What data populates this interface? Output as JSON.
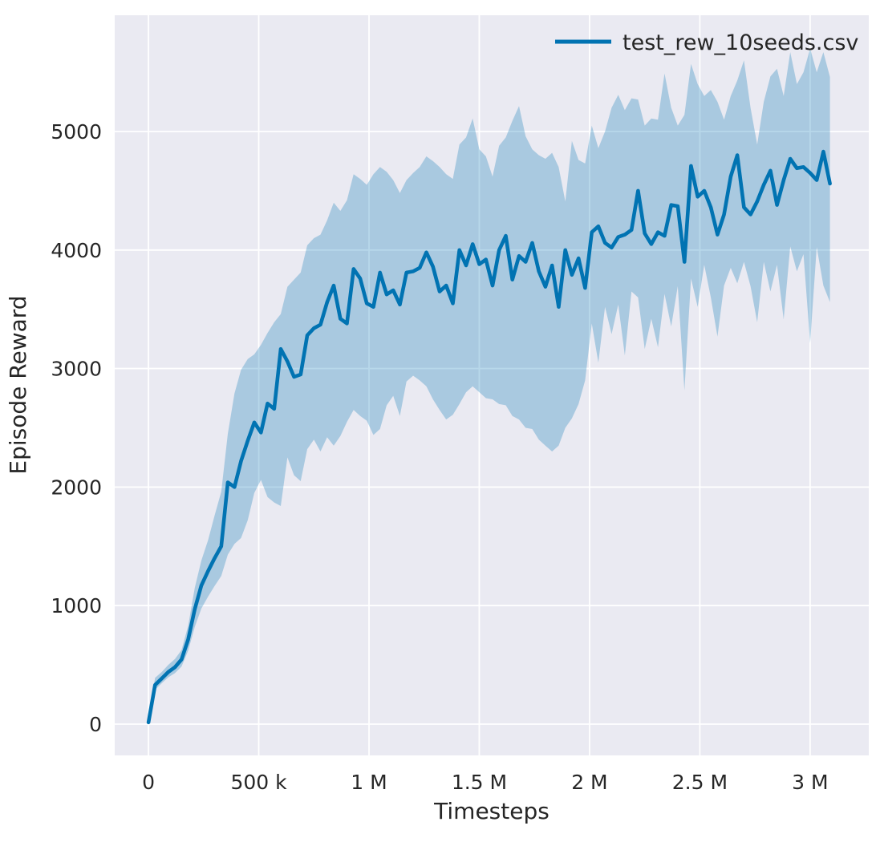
{
  "figure": {
    "background": "#ffffff",
    "axes_background": "#eaeaf2",
    "grid_color": "#ffffff",
    "text_color": "#262626"
  },
  "chart_data": {
    "type": "line",
    "title": "",
    "xlabel": "Timesteps",
    "ylabel": "Episode Reward",
    "grid": true,
    "legend_position": "upper right",
    "legend": [
      {
        "label": "test_rew_10seeds.csv",
        "color": "#0173b2"
      }
    ],
    "xlim": [
      -153000,
      3266000
    ],
    "ylim": [
      -264,
      5981
    ],
    "x_ticks": [
      {
        "value": 0,
        "label": "0"
      },
      {
        "value": 500000,
        "label": "500 k"
      },
      {
        "value": 1000000,
        "label": "1 M"
      },
      {
        "value": 1500000,
        "label": "1.5 M"
      },
      {
        "value": 2000000,
        "label": "2 M"
      },
      {
        "value": 2500000,
        "label": "2.5 M"
      },
      {
        "value": 3000000,
        "label": "3 M"
      }
    ],
    "y_ticks": [
      {
        "value": 0,
        "label": "0"
      },
      {
        "value": 1000,
        "label": "1000"
      },
      {
        "value": 2000,
        "label": "2000"
      },
      {
        "value": 3000,
        "label": "3000"
      },
      {
        "value": 4000,
        "label": "4000"
      },
      {
        "value": 5000,
        "label": "5000"
      }
    ],
    "series": [
      {
        "name": "test_rew_10seeds.csv",
        "color": "#0173b2",
        "band_alpha": 0.28,
        "x": [
          0,
          30000,
          60000,
          90000,
          120000,
          150000,
          180000,
          210000,
          240000,
          270000,
          300000,
          330000,
          360000,
          390000,
          420000,
          450000,
          480000,
          510000,
          540000,
          570000,
          600000,
          630000,
          660000,
          690000,
          720000,
          750000,
          780000,
          810000,
          840000,
          870000,
          900000,
          930000,
          960000,
          990000,
          1020000,
          1050000,
          1080000,
          1110000,
          1140000,
          1170000,
          1200000,
          1230000,
          1260000,
          1290000,
          1320000,
          1350000,
          1380000,
          1410000,
          1440000,
          1470000,
          1500000,
          1530000,
          1560000,
          1590000,
          1620000,
          1650000,
          1680000,
          1710000,
          1740000,
          1770000,
          1800000,
          1830000,
          1860000,
          1890000,
          1920000,
          1950000,
          1980000,
          2010000,
          2040000,
          2070000,
          2100000,
          2130000,
          2160000,
          2190000,
          2220000,
          2250000,
          2280000,
          2310000,
          2340000,
          2370000,
          2400000,
          2430000,
          2460000,
          2490000,
          2520000,
          2550000,
          2580000,
          2610000,
          2640000,
          2670000,
          2700000,
          2730000,
          2760000,
          2790000,
          2820000,
          2850000,
          2880000,
          2910000,
          2940000,
          2970000,
          3000000,
          3030000,
          3060000,
          3090000
        ],
        "mean": [
          15,
          330,
          385,
          440,
          480,
          545,
          715,
          970,
          1170,
          1290,
          1400,
          1500,
          2040,
          2000,
          2220,
          2390,
          2545,
          2460,
          2705,
          2660,
          3165,
          3060,
          2930,
          2950,
          3280,
          3340,
          3370,
          3560,
          3700,
          3420,
          3380,
          3840,
          3760,
          3550,
          3520,
          3810,
          3625,
          3660,
          3540,
          3810,
          3820,
          3850,
          3980,
          3860,
          3650,
          3700,
          3550,
          4000,
          3870,
          4050,
          3880,
          3920,
          3700,
          4000,
          4120,
          3750,
          3950,
          3900,
          4060,
          3820,
          3690,
          3870,
          3520,
          4000,
          3790,
          3930,
          3680,
          4150,
          4200,
          4060,
          4020,
          4110,
          4130,
          4170,
          4500,
          4140,
          4050,
          4150,
          4120,
          4380,
          4370,
          3900,
          4710,
          4450,
          4500,
          4360,
          4130,
          4300,
          4620,
          4800,
          4360,
          4300,
          4410,
          4550,
          4670,
          4380,
          4590,
          4770,
          4690,
          4700,
          4650,
          4590,
          4830,
          4560
        ],
        "band_low": [
          0,
          290,
          345,
          395,
          430,
          485,
          620,
          820,
          975,
          1075,
          1165,
          1250,
          1430,
          1520,
          1570,
          1720,
          1950,
          2060,
          1915,
          1870,
          1840,
          2250,
          2100,
          2050,
          2320,
          2400,
          2300,
          2420,
          2350,
          2430,
          2550,
          2650,
          2600,
          2560,
          2440,
          2490,
          2690,
          2770,
          2600,
          2890,
          2940,
          2900,
          2850,
          2740,
          2650,
          2570,
          2610,
          2700,
          2800,
          2850,
          2800,
          2750,
          2740,
          2700,
          2690,
          2600,
          2570,
          2500,
          2490,
          2400,
          2350,
          2300,
          2350,
          2500,
          2580,
          2700,
          2900,
          3380,
          3050,
          3520,
          3290,
          3540,
          3110,
          3650,
          3600,
          3165,
          3420,
          3180,
          3630,
          3355,
          3695,
          2815,
          3760,
          3520,
          3875,
          3600,
          3270,
          3700,
          3850,
          3720,
          3900,
          3695,
          3390,
          3900,
          3650,
          3875,
          3415,
          4030,
          3820,
          3965,
          3215,
          4025,
          3700,
          3560
        ],
        "band_high": [
          40,
          390,
          440,
          500,
          550,
          625,
          830,
          1150,
          1380,
          1550,
          1760,
          1960,
          2450,
          2790,
          2990,
          3080,
          3120,
          3200,
          3300,
          3390,
          3460,
          3690,
          3750,
          3810,
          4040,
          4100,
          4130,
          4250,
          4400,
          4330,
          4420,
          4640,
          4600,
          4550,
          4640,
          4700,
          4660,
          4590,
          4480,
          4590,
          4650,
          4700,
          4790,
          4750,
          4700,
          4640,
          4600,
          4890,
          4950,
          5110,
          4850,
          4790,
          4620,
          4880,
          4950,
          5090,
          5215,
          4960,
          4850,
          4800,
          4770,
          4820,
          4700,
          4410,
          4920,
          4760,
          4730,
          5050,
          4860,
          5000,
          5200,
          5310,
          5180,
          5280,
          5270,
          5050,
          5110,
          5100,
          5490,
          5200,
          5050,
          5140,
          5570,
          5400,
          5300,
          5350,
          5250,
          5100,
          5300,
          5430,
          5600,
          5200,
          4890,
          5250,
          5465,
          5530,
          5300,
          5670,
          5400,
          5500,
          5700,
          5500,
          5670,
          5460
        ]
      }
    ]
  }
}
